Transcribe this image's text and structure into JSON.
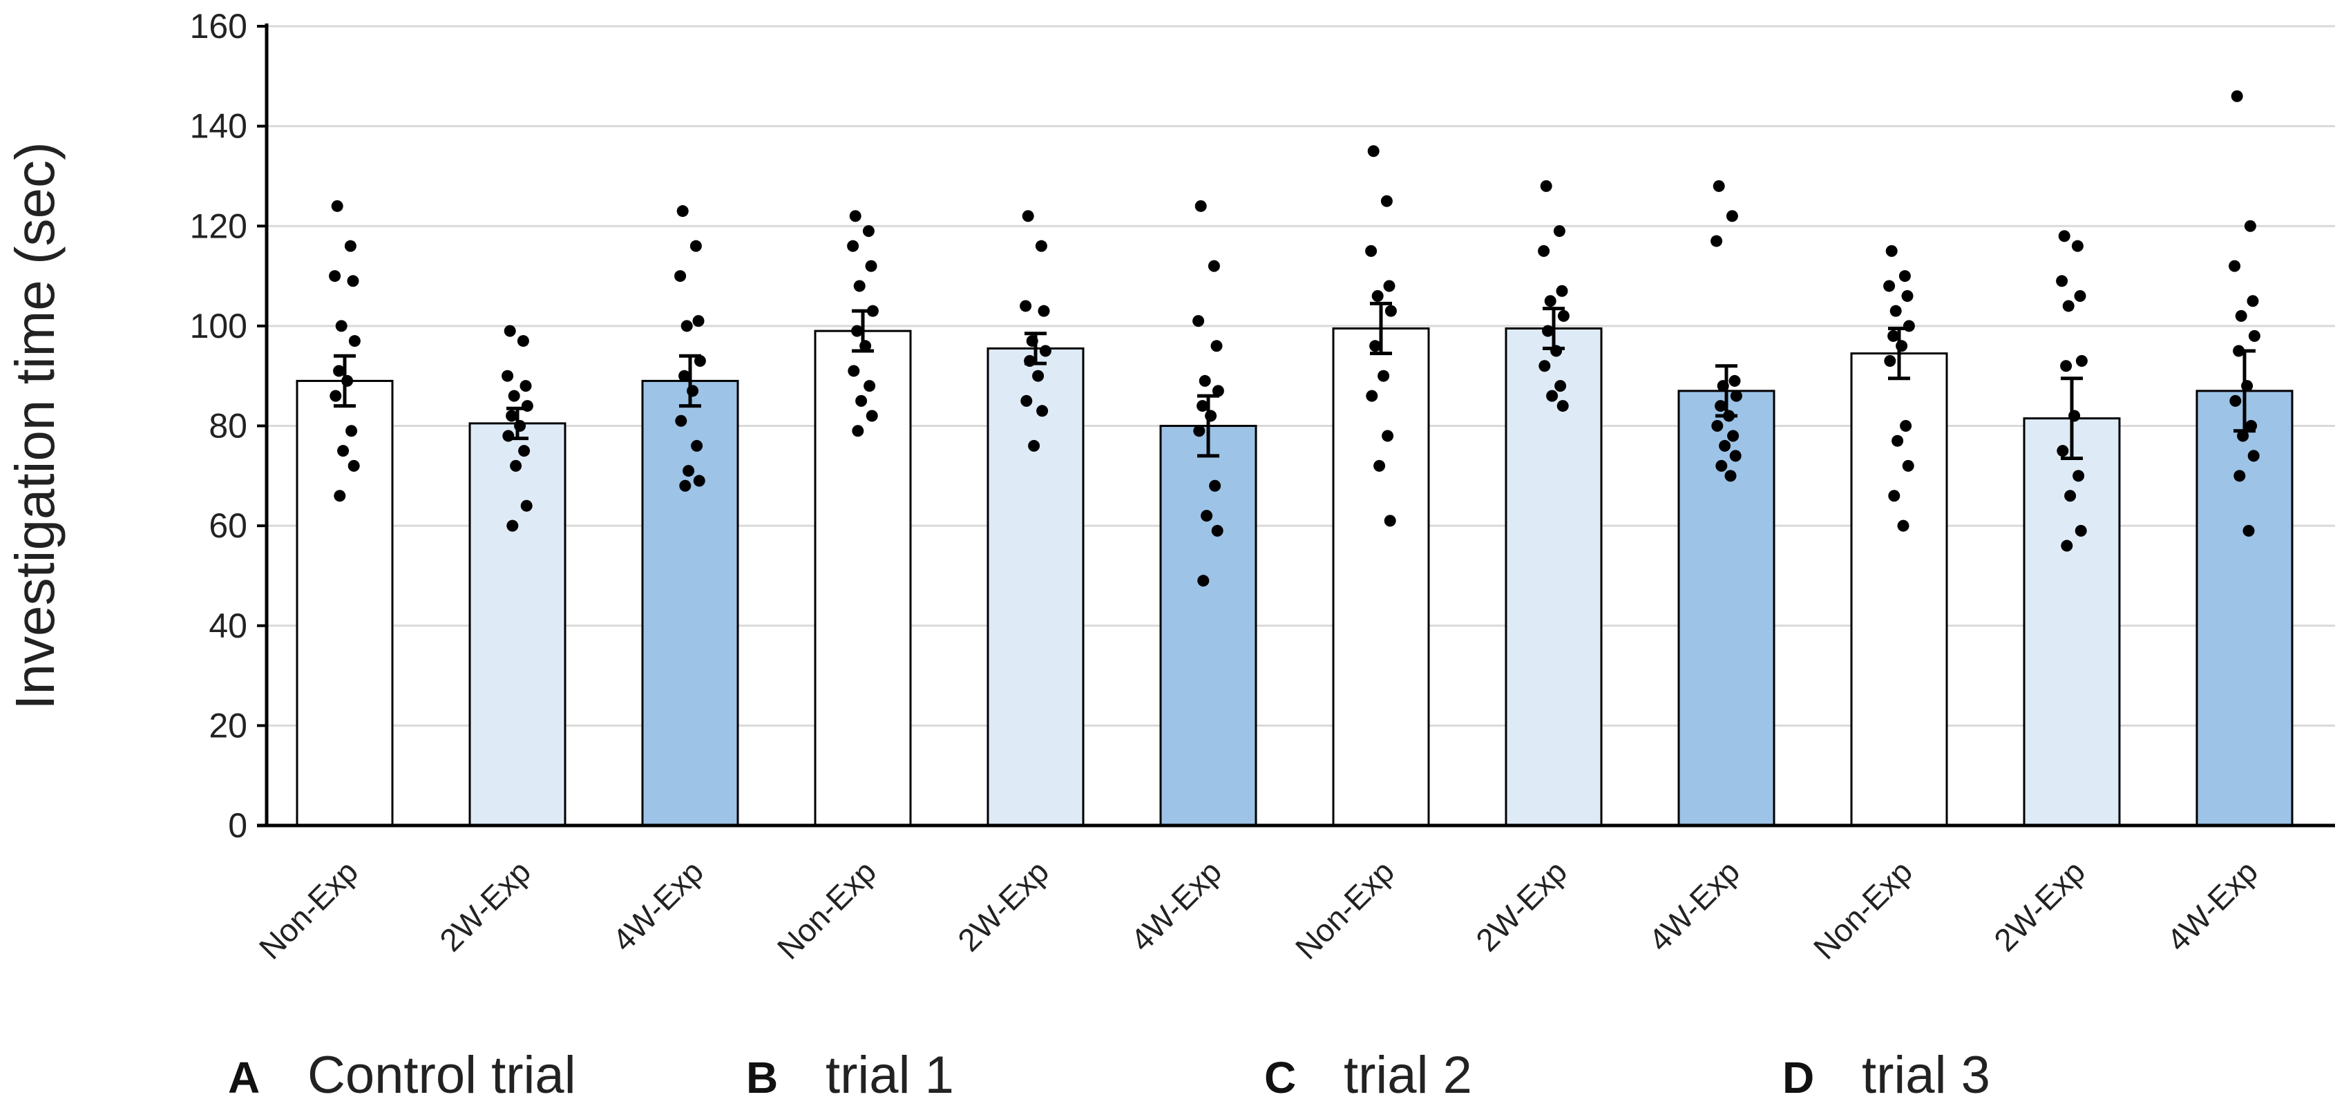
{
  "chart_data": {
    "type": "bar",
    "ylabel": "Investigation time (sec)",
    "ylim": [
      0,
      160
    ],
    "yticks": [
      0,
      20,
      40,
      60,
      80,
      100,
      120,
      140,
      160
    ],
    "grid": true,
    "colors": {
      "Non-Exp": "#ffffff",
      "2W-Exp": "#deebf7",
      "4W-Exp": "#9dc3e6",
      "stroke": "#000000",
      "grid": "#d9d9d9"
    },
    "groups": [
      {
        "letter": "A",
        "title": "Control trial",
        "bars": [
          {
            "label": "Non-Exp",
            "value": 89,
            "err": 5,
            "points": [
              124,
              116,
              110,
              109,
              100,
              97,
              91,
              89,
              86,
              79,
              75,
              72,
              66
            ]
          },
          {
            "label": "2W-Exp",
            "value": 80.5,
            "err": 3,
            "points": [
              99,
              97,
              90,
              88,
              86,
              84,
              82,
              80,
              78,
              75,
              72,
              64,
              60
            ]
          },
          {
            "label": "4W-Exp",
            "value": 89,
            "err": 5,
            "points": [
              123,
              116,
              110,
              101,
              100,
              93,
              90,
              87,
              81,
              76,
              71,
              69,
              68
            ]
          }
        ]
      },
      {
        "letter": "B",
        "title": "trial 1",
        "bars": [
          {
            "label": "Non-Exp",
            "value": 99,
            "err": 4,
            "points": [
              122,
              119,
              116,
              112,
              108,
              103,
              99,
              96,
              91,
              88,
              85,
              82,
              79
            ]
          },
          {
            "label": "2W-Exp",
            "value": 95.5,
            "err": 3,
            "points": [
              122,
              116,
              104,
              103,
              97,
              95,
              93,
              90,
              85,
              83,
              76
            ]
          },
          {
            "label": "4W-Exp",
            "value": 80,
            "err": 6,
            "points": [
              124,
              112,
              101,
              96,
              89,
              87,
              84,
              82,
              79,
              68,
              62,
              59,
              49
            ]
          }
        ]
      },
      {
        "letter": "C",
        "title": "trial 2",
        "bars": [
          {
            "label": "Non-Exp",
            "value": 99.5,
            "err": 5,
            "points": [
              135,
              125,
              115,
              108,
              106,
              103,
              96,
              90,
              86,
              78,
              72,
              61
            ]
          },
          {
            "label": "2W-Exp",
            "value": 99.5,
            "err": 4,
            "points": [
              128,
              119,
              115,
              107,
              105,
              102,
              99,
              95,
              92,
              88,
              86,
              84
            ]
          },
          {
            "label": "4W-Exp",
            "value": 87,
            "err": 5,
            "points": [
              128,
              122,
              117,
              89,
              88,
              86,
              84,
              82,
              80,
              78,
              76,
              74,
              72,
              70
            ]
          }
        ]
      },
      {
        "letter": "D",
        "title": "trial 3",
        "bars": [
          {
            "label": "Non-Exp",
            "value": 94.5,
            "err": 5,
            "points": [
              115,
              110,
              108,
              106,
              103,
              100,
              98,
              96,
              93,
              80,
              77,
              72,
              66,
              60
            ]
          },
          {
            "label": "2W-Exp",
            "value": 81.5,
            "err": 8,
            "points": [
              118,
              116,
              109,
              106,
              104,
              93,
              92,
              82,
              75,
              70,
              66,
              59,
              56
            ]
          },
          {
            "label": "4W-Exp",
            "value": 87,
            "err": 8,
            "points": [
              146,
              120,
              112,
              105,
              102,
              98,
              95,
              88,
              85,
              80,
              78,
              74,
              70,
              59
            ]
          }
        ]
      }
    ]
  }
}
